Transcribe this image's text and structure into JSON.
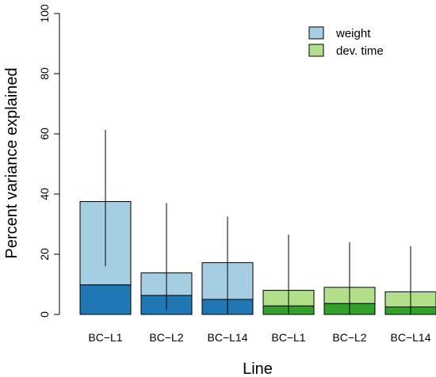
{
  "chart_data": {
    "type": "bar",
    "stacked": true,
    "title": "",
    "xlabel": "Line",
    "ylabel": "Percent variance explained",
    "ylim": [
      0,
      100
    ],
    "yticks": [
      "0",
      "20",
      "40",
      "60",
      "80",
      "100"
    ],
    "grid": false,
    "legend_position": "top-right",
    "legend": [
      {
        "label": "weight",
        "color": "#a6cee3"
      },
      {
        "label": "dev. time",
        "color": "#b2df8a"
      }
    ],
    "categories": [
      "BC−L1",
      "BC−L2",
      "BC−L14",
      "BC−L1",
      "BC−L2",
      "BC−L14"
    ],
    "groups": [
      "weight",
      "weight",
      "weight",
      "dev. time",
      "dev. time",
      "dev. time"
    ],
    "totals": [
      37.5,
      13.8,
      17.2,
      8.0,
      9.0,
      7.5
    ],
    "lower_segment": [
      9.8,
      6.3,
      5.0,
      2.8,
      3.6,
      2.5
    ],
    "error_low": [
      16.0,
      1.5,
      0.3,
      0.2,
      0.2,
      0.2
    ],
    "error_high": [
      61.3,
      37.0,
      32.5,
      26.5,
      24.0,
      22.7
    ],
    "colors": {
      "weight_light": "#a6cee3",
      "weight_dark": "#1f78b4",
      "dev_light": "#b2df8a",
      "dev_dark": "#33a02c"
    }
  }
}
